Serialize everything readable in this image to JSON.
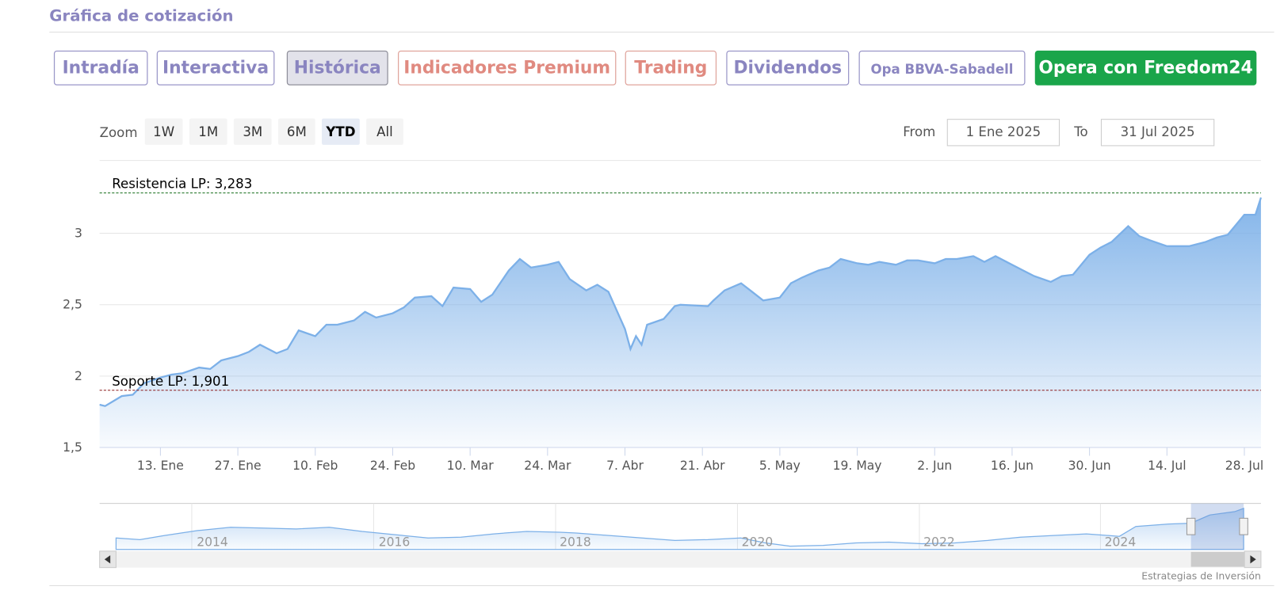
{
  "header": {
    "title": "Gráfica de cotización"
  },
  "tabs": [
    "Intradía",
    "Interactiva",
    "Histórica",
    "Indicadores Premium",
    "Trading",
    "Dividendos",
    "Opa BBVA-Sabadell",
    "Opera con Freedom24"
  ],
  "range_selector": {
    "zoom_label": "Zoom",
    "buttons": [
      "1W",
      "1M",
      "3M",
      "6M",
      "YTD",
      "All"
    ],
    "from_label": "From",
    "from": "1 Ene 2025",
    "to_label": "To",
    "to": "31 Jul 2025"
  },
  "chart_data": {
    "type": "area",
    "color": "#7cb0e8",
    "grid": true,
    "x": [
      "2025-01-02",
      "2025-01-03",
      "2025-01-06",
      "2025-01-08",
      "2025-01-10",
      "2025-01-13",
      "2025-01-15",
      "2025-01-17",
      "2025-01-20",
      "2025-01-22",
      "2025-01-24",
      "2025-01-27",
      "2025-01-29",
      "2025-01-31",
      "2025-02-03",
      "2025-02-05",
      "2025-02-07",
      "2025-02-10",
      "2025-02-12",
      "2025-02-14",
      "2025-02-17",
      "2025-02-19",
      "2025-02-21",
      "2025-02-24",
      "2025-02-26",
      "2025-02-28",
      "2025-03-03",
      "2025-03-05",
      "2025-03-07",
      "2025-03-10",
      "2025-03-12",
      "2025-03-14",
      "2025-03-17",
      "2025-03-19",
      "2025-03-21",
      "2025-03-24",
      "2025-03-26",
      "2025-03-28",
      "2025-03-31",
      "2025-04-02",
      "2025-04-04",
      "2025-04-07",
      "2025-04-08",
      "2025-04-09",
      "2025-04-10",
      "2025-04-11",
      "2025-04-14",
      "2025-04-16",
      "2025-04-17",
      "2025-04-22",
      "2025-04-23",
      "2025-04-25",
      "2025-04-28",
      "2025-04-30",
      "2025-05-02",
      "2025-05-05",
      "2025-05-07",
      "2025-05-09",
      "2025-05-12",
      "2025-05-14",
      "2025-05-16",
      "2025-05-19",
      "2025-05-21",
      "2025-05-23",
      "2025-05-26",
      "2025-05-28",
      "2025-05-30",
      "2025-06-02",
      "2025-06-04",
      "2025-06-06",
      "2025-06-09",
      "2025-06-11",
      "2025-06-13",
      "2025-06-16",
      "2025-06-18",
      "2025-06-20",
      "2025-06-23",
      "2025-06-25",
      "2025-06-27",
      "2025-06-30",
      "2025-07-02",
      "2025-07-04",
      "2025-07-07",
      "2025-07-09",
      "2025-07-11",
      "2025-07-14",
      "2025-07-16",
      "2025-07-18",
      "2025-07-21",
      "2025-07-23",
      "2025-07-25",
      "2025-07-28",
      "2025-07-30",
      "2025-07-31"
    ],
    "values": [
      1.8,
      1.79,
      1.86,
      1.87,
      1.95,
      1.99,
      2.01,
      2.02,
      2.06,
      2.05,
      2.11,
      2.14,
      2.17,
      2.22,
      2.16,
      2.19,
      2.32,
      2.28,
      2.36,
      2.36,
      2.39,
      2.45,
      2.41,
      2.44,
      2.48,
      2.55,
      2.56,
      2.49,
      2.62,
      2.61,
      2.52,
      2.57,
      2.74,
      2.82,
      2.76,
      2.78,
      2.8,
      2.68,
      2.6,
      2.64,
      2.59,
      2.33,
      2.19,
      2.28,
      2.22,
      2.36,
      2.4,
      2.49,
      2.5,
      2.49,
      2.53,
      2.6,
      2.65,
      2.59,
      2.53,
      2.55,
      2.65,
      2.69,
      2.74,
      2.76,
      2.82,
      2.79,
      2.78,
      2.8,
      2.78,
      2.81,
      2.81,
      2.79,
      2.82,
      2.82,
      2.84,
      2.8,
      2.84,
      2.78,
      2.74,
      2.7,
      2.66,
      2.7,
      2.71,
      2.85,
      2.9,
      2.94,
      3.05,
      2.98,
      2.95,
      2.91,
      2.91,
      2.91,
      2.94,
      2.97,
      2.99,
      3.13,
      3.13,
      3.25
    ],
    "xlim": [
      "2025-01-02",
      "2025-07-31"
    ],
    "xticks": [
      {
        "value": "2025-01-13",
        "label": "13. Ene"
      },
      {
        "value": "2025-01-27",
        "label": "27. Ene"
      },
      {
        "value": "2025-02-10",
        "label": "10. Feb"
      },
      {
        "value": "2025-02-24",
        "label": "24. Feb"
      },
      {
        "value": "2025-03-10",
        "label": "10. Mar"
      },
      {
        "value": "2025-03-24",
        "label": "24. Mar"
      },
      {
        "value": "2025-04-07",
        "label": "7. Abr"
      },
      {
        "value": "2025-04-21",
        "label": "21. Abr"
      },
      {
        "value": "2025-05-05",
        "label": "5. May"
      },
      {
        "value": "2025-05-19",
        "label": "19. May"
      },
      {
        "value": "2025-06-02",
        "label": "2. Jun"
      },
      {
        "value": "2025-06-16",
        "label": "16. Jun"
      },
      {
        "value": "2025-06-30",
        "label": "30. Jun"
      },
      {
        "value": "2025-07-14",
        "label": "14. Jul"
      },
      {
        "value": "2025-07-28",
        "label": "28. Jul"
      }
    ],
    "ylim": [
      1.5,
      3.51
    ],
    "yticks": [
      {
        "value": 1.5,
        "label": "1,5"
      },
      2,
      {
        "value": 2.5,
        "label": "2,5"
      },
      3
    ],
    "plot_lines": [
      {
        "label": "Resistencia LP: 3,283",
        "value": 3.283,
        "color": "#2e7d32"
      },
      {
        "label": "Soporte LP: 1,901",
        "value": 1.901,
        "color": "#8b1a1a"
      }
    ]
  },
  "navigator": {
    "labels": [
      "2014",
      "2016",
      "2018",
      "2020",
      "2022",
      "2024"
    ]
  },
  "credit": "Estrategias de Inversión"
}
